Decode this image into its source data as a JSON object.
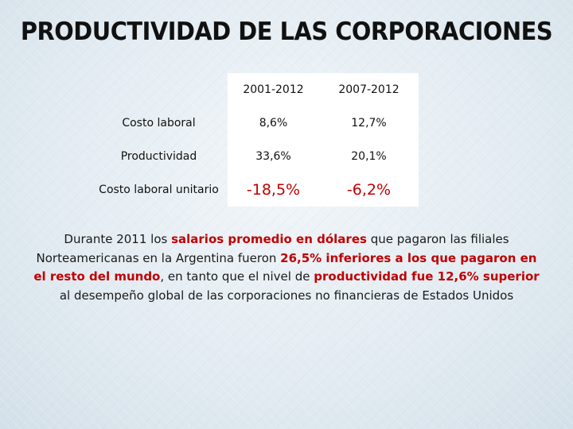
{
  "slide": {
    "title": "PRODUCTIVIDAD DE LAS CORPORACIONES"
  },
  "table": {
    "columns": [
      "2001-2012",
      "2007-2012"
    ],
    "rows": [
      {
        "label": "Costo laboral",
        "values": [
          "8,6%",
          "12,7%"
        ]
      },
      {
        "label": "Productividad",
        "values": [
          "33,6%",
          "20,1%"
        ]
      },
      {
        "label": "Costo laboral unitario",
        "values": [
          "-18,5%",
          "-6,2%"
        ]
      }
    ]
  },
  "narrative": {
    "p1": "Durante 2011 los ",
    "p2": "salarios promedio en dólares",
    "p3": " que pagaron las filiales Norteamericanas en la Argentina fueron ",
    "p4": "26,5% inferiores a los que pagaron en el resto del mundo",
    "p5": ", en tanto que el nivel de ",
    "p6": "productividad fue 12,6% superior",
    "p7": " al desempeño global de las corporaciones no  financieras de Estados Unidos"
  },
  "colors": {
    "highlight": "#c00000",
    "background": "#dce7ef",
    "cell": "#ffffff"
  }
}
